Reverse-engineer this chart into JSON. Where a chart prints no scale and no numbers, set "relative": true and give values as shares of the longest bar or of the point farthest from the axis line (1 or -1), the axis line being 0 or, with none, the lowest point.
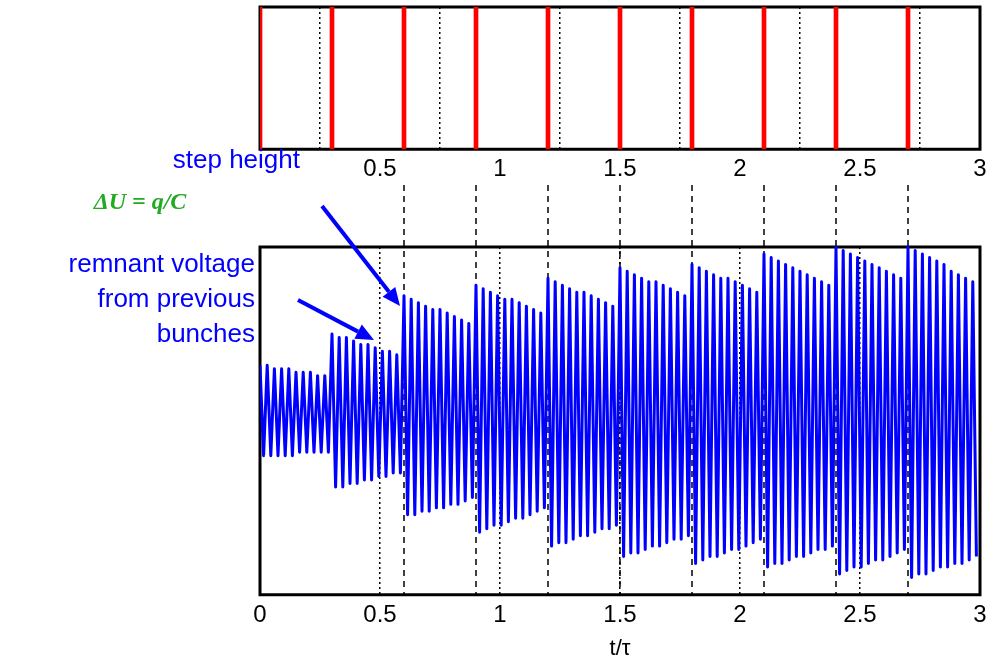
{
  "chart_data": [
    {
      "type": "bar",
      "relative": true,
      "color": "#ff0000",
      "grid": "x",
      "xlim": [
        0,
        3
      ],
      "xticks": [
        0.5,
        1,
        1.5,
        2,
        2.5,
        3
      ],
      "x": [
        0,
        0.3,
        0.6,
        0.9,
        1.2,
        1.5,
        1.8,
        2.1,
        2.4,
        2.7
      ],
      "values": [
        1,
        1,
        1,
        1,
        1,
        1,
        1,
        1,
        1,
        1
      ]
    },
    {
      "type": "line",
      "relative": true,
      "xlabel": "t/τ",
      "grid": "x",
      "xlim": [
        0,
        3
      ],
      "xticks": [
        0,
        0.5,
        1,
        1.5,
        2,
        2.5,
        3
      ],
      "annotations": [
        "step height",
        "ΔU = q/C",
        "remnant voltage from previous bunches"
      ],
      "ref_lines": [
        {
          "axis": "x",
          "value": 0.6,
          "line_style": "dashed",
          "color": "#000000"
        },
        {
          "axis": "x",
          "value": 0.9,
          "line_style": "dashed",
          "color": "#000000"
        },
        {
          "axis": "x",
          "value": 1.2,
          "line_style": "dashed",
          "color": "#000000"
        },
        {
          "axis": "x",
          "value": 1.5,
          "line_style": "dashed",
          "color": "#000000"
        },
        {
          "axis": "x",
          "value": 1.8,
          "line_style": "dashed",
          "color": "#000000"
        },
        {
          "axis": "x",
          "value": 2.1,
          "line_style": "dashed",
          "color": "#000000"
        },
        {
          "axis": "x",
          "value": 2.4,
          "line_style": "dashed",
          "color": "#000000"
        },
        {
          "axis": "x",
          "value": 2.7,
          "line_style": "dashed",
          "color": "#000000"
        }
      ],
      "series": [
        {
          "color": "#0000ff",
          "x": [
            0,
            0.015,
            0.03,
            0.045,
            0.06,
            0.075,
            0.09,
            0.105,
            0.12,
            0.135,
            0.15,
            0.165,
            0.18,
            0.195,
            0.21,
            0.225,
            0.24,
            0.255,
            0.27,
            0.285,
            0.3,
            0.315,
            0.33,
            0.345,
            0.36,
            0.375,
            0.39,
            0.405,
            0.42,
            0.435,
            0.45,
            0.465,
            0.48,
            0.495,
            0.51,
            0.525,
            0.54,
            0.555,
            0.57,
            0.585,
            0.6,
            0.615,
            0.63,
            0.645,
            0.66,
            0.675,
            0.69,
            0.705,
            0.72,
            0.735,
            0.75,
            0.765,
            0.78,
            0.795,
            0.81,
            0.825,
            0.84,
            0.855,
            0.87,
            0.885,
            0.9,
            0.915,
            0.93,
            0.945,
            0.96,
            0.975,
            0.99,
            1.005,
            1.02,
            1.035,
            1.05,
            1.065,
            1.08,
            1.095,
            1.11,
            1.125,
            1.14,
            1.155,
            1.17,
            1.185,
            1.2,
            1.215,
            1.23,
            1.245,
            1.26,
            1.275,
            1.29,
            1.305,
            1.32,
            1.335,
            1.35,
            1.365,
            1.38,
            1.395,
            1.41,
            1.425,
            1.44,
            1.455,
            1.47,
            1.485,
            1.5,
            1.515,
            1.53,
            1.545,
            1.56,
            1.575,
            1.59,
            1.605,
            1.62,
            1.635,
            1.65,
            1.665,
            1.68,
            1.695,
            1.71,
            1.725,
            1.74,
            1.755,
            1.77,
            1.785,
            1.8,
            1.815,
            1.83,
            1.845,
            1.86,
            1.875,
            1.89,
            1.905,
            1.92,
            1.935,
            1.95,
            1.965,
            1.98,
            1.995,
            2.01,
            2.025,
            2.04,
            2.055,
            2.07,
            2.085,
            2.1,
            2.115,
            2.13,
            2.145,
            2.16,
            2.175,
            2.19,
            2.205,
            2.22,
            2.235,
            2.25,
            2.265,
            2.28,
            2.295,
            2.31,
            2.325,
            2.34,
            2.355,
            2.37,
            2.385,
            2.4,
            2.415,
            2.43,
            2.445,
            2.46,
            2.475,
            2.49,
            2.505,
            2.52,
            2.535,
            2.55,
            2.565,
            2.58,
            2.595,
            2.61,
            2.625,
            2.64,
            2.655,
            2.67,
            2.685,
            2.7,
            2.715,
            2.73,
            2.745,
            2.76,
            2.775,
            2.79,
            2.805,
            2.82,
            2.835,
            2.85,
            2.865,
            2.88,
            2.895,
            2.91,
            2.925,
            2.94,
            2.955,
            2.97,
            2.985
          ],
          "values": [
            0.66,
            0.4,
            0.66,
            0.4,
            0.65,
            0.4,
            0.65,
            0.4,
            0.65,
            0.4,
            0.64,
            0.41,
            0.64,
            0.41,
            0.64,
            0.41,
            0.63,
            0.41,
            0.63,
            0.41,
            0.75,
            0.31,
            0.74,
            0.31,
            0.74,
            0.32,
            0.73,
            0.32,
            0.72,
            0.33,
            0.72,
            0.33,
            0.71,
            0.34,
            0.7,
            0.34,
            0.7,
            0.35,
            0.69,
            0.35,
            0.86,
            0.23,
            0.85,
            0.23,
            0.84,
            0.24,
            0.83,
            0.24,
            0.82,
            0.25,
            0.82,
            0.25,
            0.81,
            0.26,
            0.8,
            0.26,
            0.79,
            0.27,
            0.78,
            0.28,
            0.89,
            0.18,
            0.88,
            0.19,
            0.87,
            0.2,
            0.86,
            0.2,
            0.85,
            0.21,
            0.85,
            0.22,
            0.84,
            0.22,
            0.83,
            0.23,
            0.82,
            0.24,
            0.81,
            0.25,
            0.91,
            0.14,
            0.9,
            0.15,
            0.89,
            0.15,
            0.88,
            0.16,
            0.87,
            0.17,
            0.87,
            0.17,
            0.86,
            0.18,
            0.85,
            0.19,
            0.84,
            0.19,
            0.83,
            0.2,
            0.94,
            0.11,
            0.93,
            0.12,
            0.92,
            0.12,
            0.91,
            0.13,
            0.9,
            0.14,
            0.9,
            0.14,
            0.89,
            0.15,
            0.88,
            0.16,
            0.87,
            0.16,
            0.86,
            0.17,
            0.95,
            0.09,
            0.94,
            0.1,
            0.93,
            0.11,
            0.92,
            0.11,
            0.91,
            0.12,
            0.91,
            0.13,
            0.9,
            0.13,
            0.89,
            0.14,
            0.88,
            0.15,
            0.87,
            0.16,
            0.98,
            0.08,
            0.97,
            0.09,
            0.96,
            0.09,
            0.95,
            0.1,
            0.94,
            0.11,
            0.93,
            0.11,
            0.92,
            0.12,
            0.91,
            0.13,
            0.9,
            0.13,
            0.89,
            0.14,
            1.0,
            0.06,
            0.99,
            0.07,
            0.98,
            0.08,
            0.97,
            0.08,
            0.96,
            0.09,
            0.95,
            0.1,
            0.94,
            0.1,
            0.93,
            0.11,
            0.92,
            0.12,
            0.91,
            0.13,
            1.0,
            0.05,
            0.99,
            0.06,
            0.98,
            0.06,
            0.97,
            0.07,
            0.96,
            0.08,
            0.95,
            0.08,
            0.93,
            0.09,
            0.92,
            0.09,
            0.91,
            0.1,
            0.9,
            0.11
          ]
        }
      ]
    }
  ]
}
